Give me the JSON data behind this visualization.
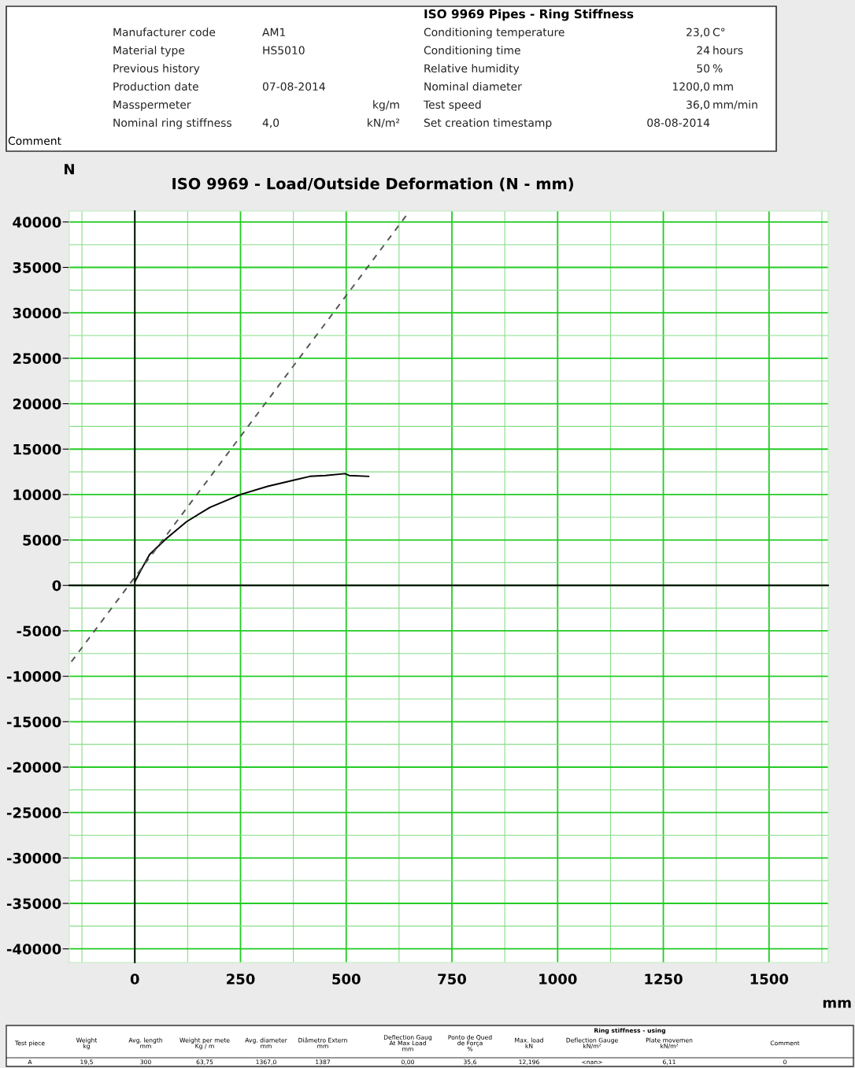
{
  "chart_data": {
    "type": "line",
    "title": "ISO 9969 - Load/Outside Deformation (N - mm)",
    "subtitle": "ISO 9969 Pipes - Ring Stiffness",
    "ylabel": "N",
    "xlabel": "mm",
    "xlim": [
      -155,
      1640
    ],
    "ylim": [
      -41500,
      41200
    ],
    "xticks": [
      {
        "value": -125,
        "label": null
      },
      0,
      {
        "value": 125,
        "label": null
      },
      250,
      {
        "value": 375,
        "label": null
      },
      500,
      {
        "value": 625,
        "label": null
      },
      750,
      {
        "value": 875,
        "label": null
      },
      1000,
      {
        "value": 1125,
        "label": null
      },
      1250,
      {
        "value": 1375,
        "label": null
      },
      1500,
      {
        "value": 1625,
        "label": null
      }
    ],
    "yticks": [
      -40000,
      {
        "value": -37500,
        "label": null
      },
      -35000,
      {
        "value": -32500,
        "label": null
      },
      -30000,
      {
        "value": -27500,
        "label": null
      },
      -25000,
      {
        "value": -22500,
        "label": null
      },
      -20000,
      {
        "value": -17500,
        "label": null
      },
      -15000,
      {
        "value": -12500,
        "label": null
      },
      -10000,
      {
        "value": -7500,
        "label": null
      },
      -5000,
      {
        "value": -2500,
        "label": null
      },
      0,
      {
        "value": 2500,
        "label": null
      },
      5000,
      {
        "value": 7500,
        "label": null
      },
      10000,
      {
        "value": 12500,
        "label": null
      },
      15000,
      {
        "value": 17500,
        "label": null
      },
      20000,
      {
        "value": 22500,
        "label": null
      },
      25000,
      {
        "value": 27500,
        "label": null
      },
      30000,
      {
        "value": 32500,
        "label": null
      },
      35000,
      {
        "value": 37500,
        "label": null
      },
      40000
    ],
    "grid": true,
    "marker": "none",
    "series": [
      {
        "color": "#000000",
        "line_style": "solid",
        "x": [
          0,
          17,
          35,
          73,
          122,
          178,
          250,
          314,
          377,
          414,
          451,
          497,
          507,
          553
        ],
        "values": [
          400,
          1900,
          3400,
          5100,
          7000,
          8600,
          10000,
          10900,
          11600,
          12000,
          12100,
          12300,
          12100,
          12000
        ]
      },
      {
        "color": "#555555",
        "line_style": "dashed",
        "x": [
          -150,
          650
        ],
        "values": [
          -8400,
          41200
        ]
      }
    ],
    "annotations": [
      "Manufacturer code",
      "AM1",
      null,
      "Conditioning temperature",
      "23,0",
      "C°",
      "Material type",
      "HS5010",
      null,
      "Conditioning time",
      "24",
      "hours",
      "Previous history",
      null,
      null,
      "Relative humidity",
      "50",
      "%",
      "Production date",
      "07-08-2014",
      null,
      "Nominal diameter",
      "1200,0",
      "mm",
      "Masspermeter",
      null,
      "kg/m",
      "Test speed",
      "36,0",
      "mm/min",
      "Nominal ring stiffness",
      "4,0",
      "kN/m²",
      "Set creation timestamp",
      "08-08-2014",
      null,
      "Comment",
      "Test piece",
      "Weight\nkg",
      "Avg. length\nmm",
      "Weight per mete\nKg / m",
      "Avg. diameter\nmm",
      "Diâmetro Extern\nmm",
      "Deflection Gaug\nAt Max Load\nmm",
      "Ponto de Qued\nde Força\n%",
      "Max. load\nkN",
      "Deflection Gauge\nkN/m²",
      "Plate movemen\nkN/m²",
      "Comment",
      "Ring stiffness - using",
      "A",
      "19,5",
      "300",
      "63,75",
      "1367,0",
      "1387",
      "0,00",
      "35,6",
      "12,196",
      "<nan>",
      "6,11",
      "0"
    ]
  }
}
